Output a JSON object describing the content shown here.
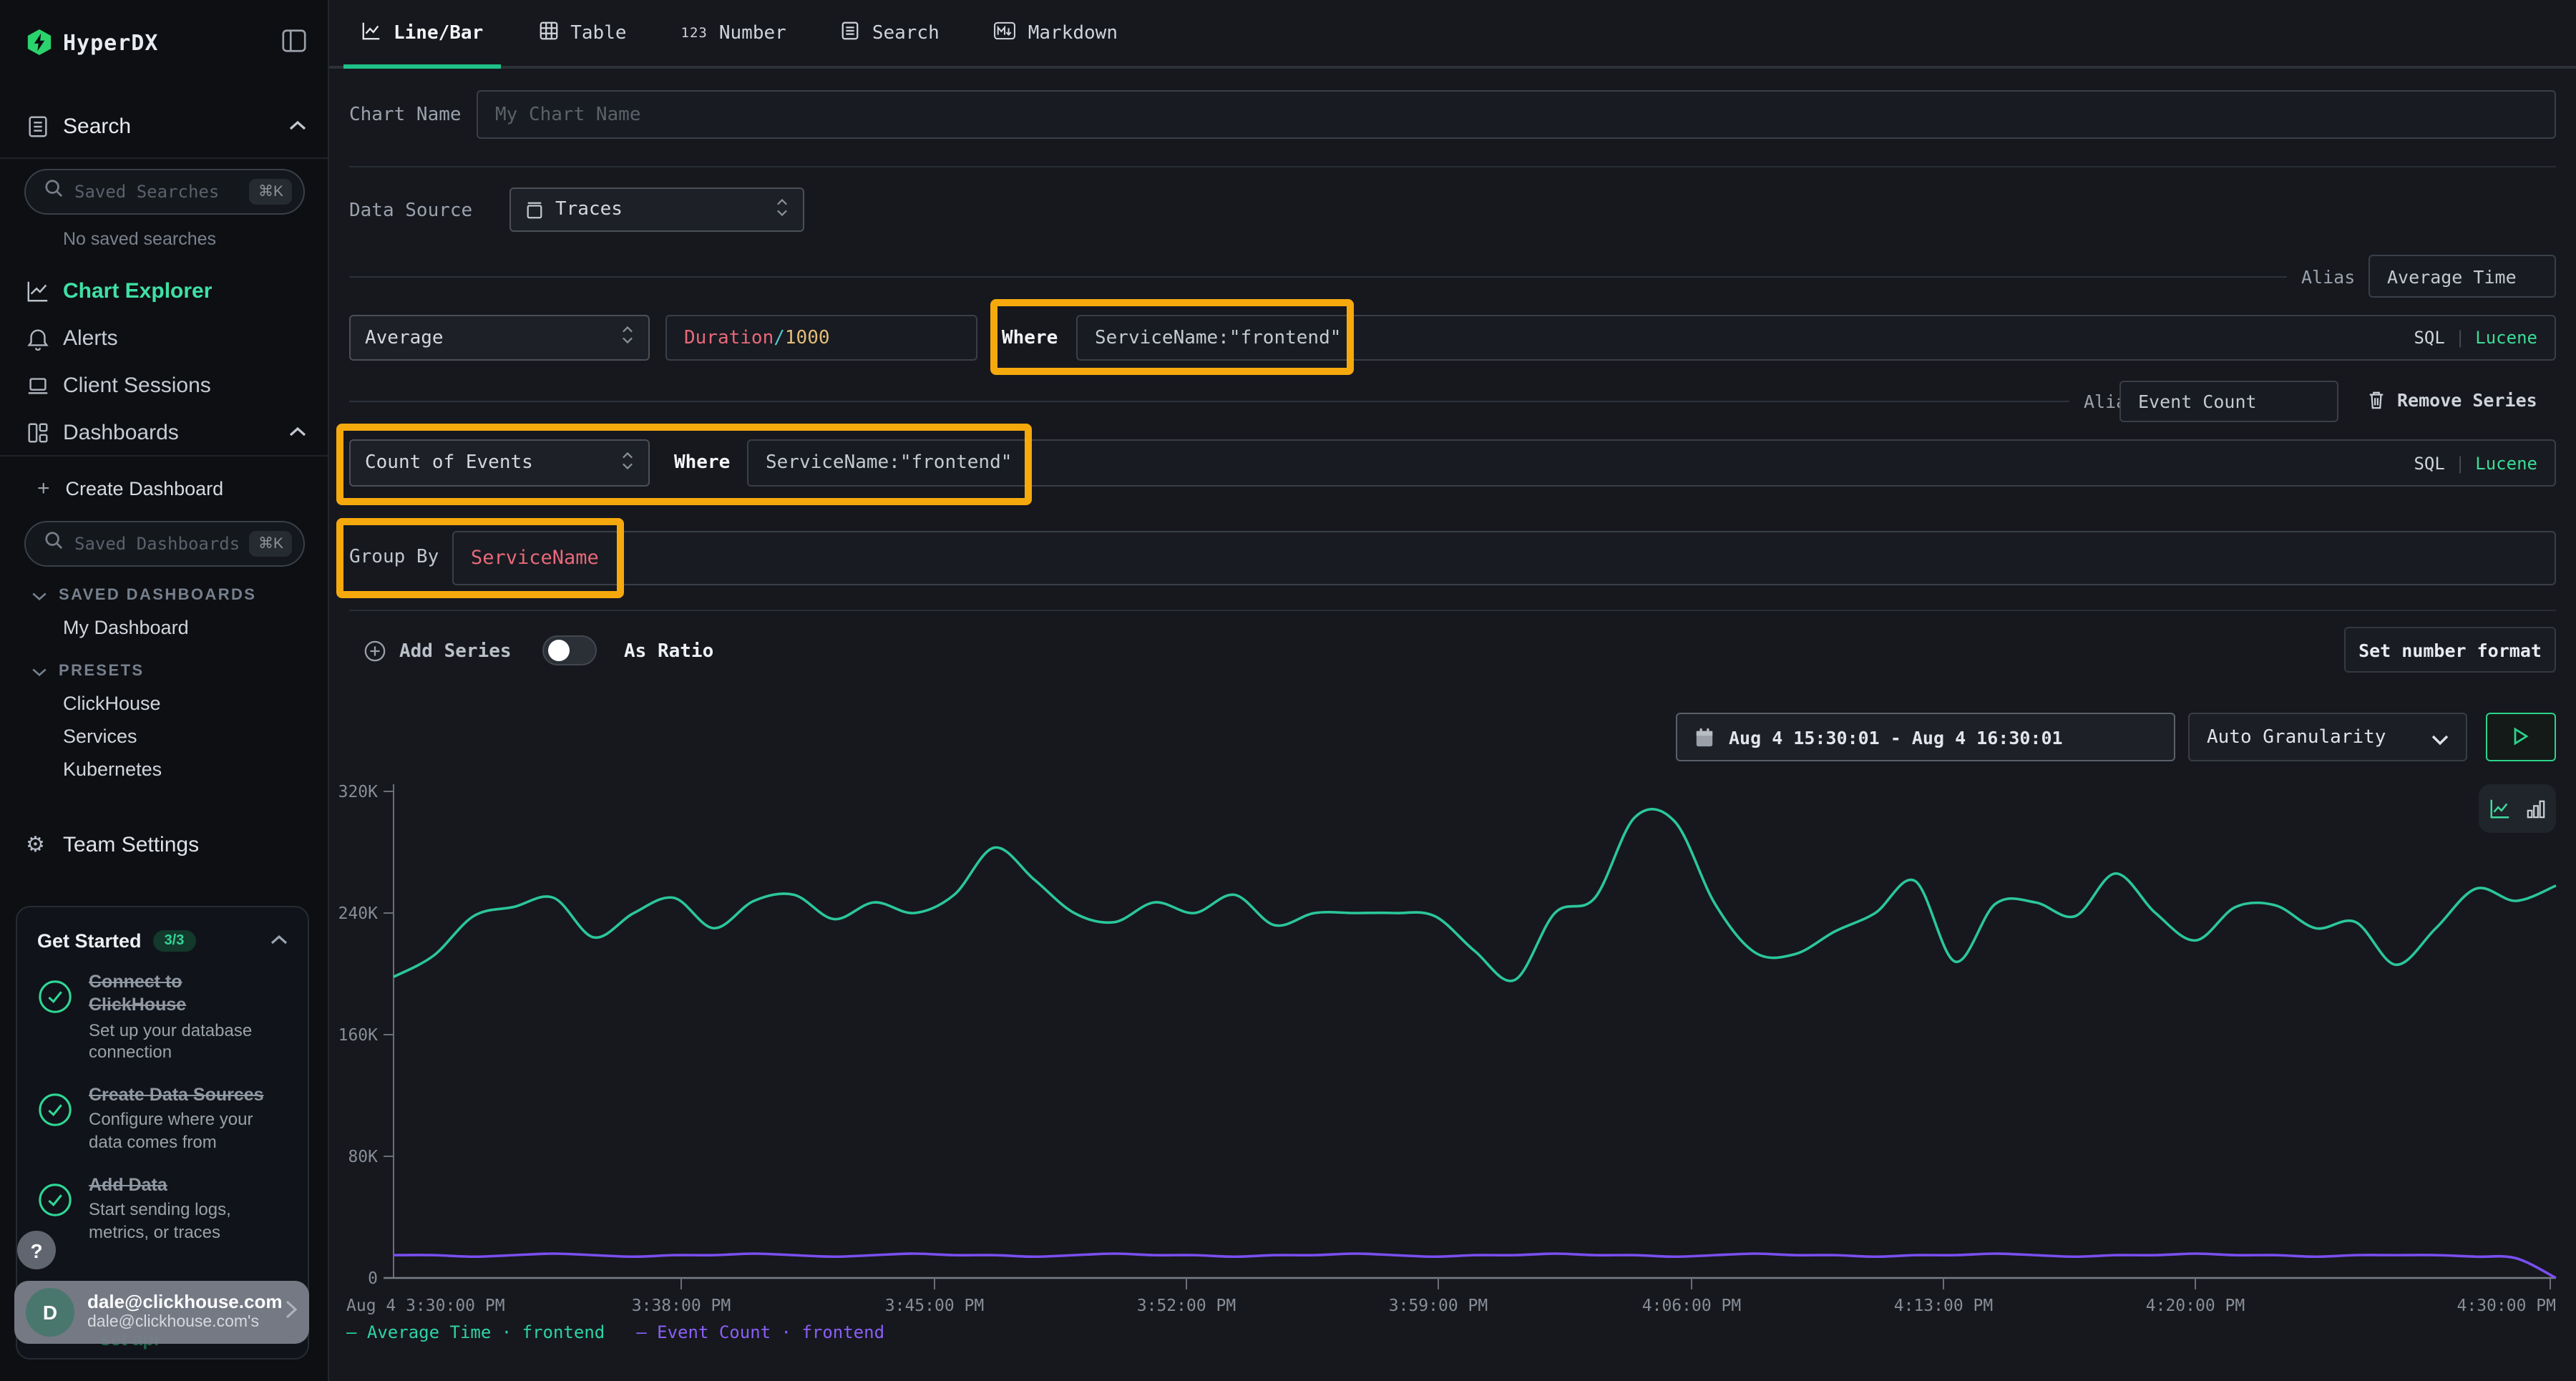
{
  "app": {
    "name": "HyperDX"
  },
  "colors": {
    "accent_green": "#3ddc97",
    "tab_underline_green": "#1fc189",
    "chart_green": "#2bc79a",
    "chart_purple": "#7a4ff0",
    "annotation_yellow": "#f6a90d",
    "syntax_red": "#e8697a",
    "syntax_cyan": "#52c8d5",
    "syntax_number_yellow": "#e3bd79"
  },
  "sidebar": {
    "search_section": "Search",
    "saved_searches": {
      "placeholder": "Saved Searches",
      "shortcut": "⌘K"
    },
    "no_saved_searches": "No saved searches",
    "nav": [
      {
        "label": "Chart Explorer"
      },
      {
        "label": "Alerts"
      },
      {
        "label": "Client Sessions"
      },
      {
        "label": "Dashboards"
      }
    ],
    "create_dashboard": {
      "plus": "+",
      "label": "Create Dashboard"
    },
    "saved_dashboards": {
      "placeholder": "Saved Dashboards",
      "shortcut": "⌘K"
    },
    "saved_dashboards_header": "SAVED DASHBOARDS",
    "my_dashboard": "My Dashboard",
    "presets_header": "PRESETS",
    "presets": [
      "ClickHouse",
      "Services",
      "Kubernetes"
    ],
    "team_settings": "Team Settings",
    "get_started": {
      "title": "Get Started",
      "badge": "3/3",
      "items": [
        {
          "title": "Connect to ClickHouse",
          "desc": "Set up your database connection"
        },
        {
          "title": "Create Data Sources",
          "desc": "Configure where your data comes from"
        },
        {
          "title": "Add Data",
          "desc": "Start sending logs, metrics, or traces"
        }
      ]
    },
    "help": "?",
    "user": {
      "initial": "D",
      "email": "dale@clickhouse.com",
      "subtitle": "dale@clickhouse.com's",
      "obscured_text": "set api"
    }
  },
  "tabs": [
    {
      "label": "Line/Bar"
    },
    {
      "label": "Table"
    },
    {
      "label": "Number"
    },
    {
      "label": "Search"
    },
    {
      "label": "Markdown"
    }
  ],
  "form": {
    "chart_name": {
      "label": "Chart Name",
      "placeholder": "My Chart Name"
    },
    "data_source": {
      "label": "Data Source",
      "value": "Traces"
    },
    "series": [
      {
        "alias_label": "Alias",
        "alias": "Average Time",
        "aggregation": "Average",
        "field_name": "Duration",
        "field_op": "/",
        "field_num": "1000",
        "where_label": "Where",
        "where": "ServiceName:\"frontend\"",
        "sql": "SQL",
        "pipe": "|",
        "lucene": "Lucene"
      },
      {
        "alias_label": "Alias",
        "alias": "Event Count",
        "remove": "Remove Series",
        "aggregation": "Count of Events",
        "where_label": "Where",
        "where": "ServiceName:\"frontend\"",
        "sql": "SQL",
        "pipe": "|",
        "lucene": "Lucene"
      }
    ],
    "group_by": {
      "label": "Group By",
      "value": "ServiceName"
    },
    "add_series": "Add Series",
    "as_ratio": "As Ratio",
    "set_number_format": "Set number format",
    "date_range": "Aug 4 15:30:01 - Aug 4 16:30:01",
    "granularity": "Auto Granularity"
  },
  "chart_data": {
    "type": "line",
    "unit": "K",
    "ylim_k": [
      0,
      320
    ],
    "grid": false,
    "legend_position": "bottom-left",
    "y_ticks": [
      "320K",
      "240K",
      "160K",
      "80K",
      "0"
    ],
    "x_ticks": [
      "Aug 4 3:30:00 PM",
      "3:38:00 PM",
      "3:45:00 PM",
      "3:52:00 PM",
      "3:59:00 PM",
      "4:06:00 PM",
      "4:13:00 PM",
      "4:20:00 PM",
      "4:30:00 PM"
    ],
    "legend": [
      {
        "label": "— Average Time · frontend",
        "color": "#2fd3a2"
      },
      {
        "label": "— Event Count · frontend",
        "color": "#8b5ff6"
      }
    ],
    "series": [
      {
        "name": "Average Time · frontend",
        "color": "#2bc79a",
        "values_k": [
          198,
          212,
          238,
          244,
          250,
          224,
          240,
          250,
          230,
          248,
          252,
          236,
          247,
          240,
          252,
          283,
          262,
          240,
          234,
          247,
          240,
          252,
          232,
          240,
          240,
          240,
          238,
          215,
          196,
          240,
          250,
          303,
          300,
          246,
          214,
          213,
          228,
          240,
          261,
          208,
          246,
          247,
          238,
          266,
          240,
          222,
          244,
          245,
          230,
          234,
          206,
          230,
          256,
          248,
          258
        ]
      },
      {
        "name": "Event Count · frontend",
        "color": "#7a4ff0",
        "values_k": [
          15,
          15,
          14,
          15,
          16,
          15,
          14,
          15,
          15,
          16,
          15,
          14,
          15,
          16,
          15,
          15,
          14,
          15,
          16,
          15,
          15,
          14,
          15,
          15,
          16,
          15,
          14,
          15,
          15,
          16,
          15,
          15,
          14,
          15,
          16,
          15,
          15,
          14,
          15,
          15,
          16,
          15,
          14,
          15,
          15,
          16,
          15,
          15,
          14,
          15,
          15,
          15,
          14,
          13,
          0
        ]
      }
    ]
  }
}
